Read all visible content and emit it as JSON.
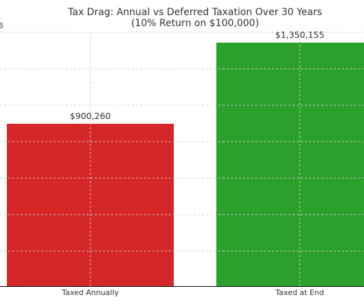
{
  "chart_data": {
    "type": "bar",
    "title": "Tax Drag: Annual vs Deferred Taxation Over 30 Years",
    "subtitle": "(10% Return on $100,000)",
    "categories": [
      "Taxed Annually",
      "Taxed at End"
    ],
    "values": [
      900260,
      1350155
    ],
    "data_labels": [
      "$900,260",
      "$1,350,155"
    ],
    "colors": [
      "#d62728",
      "#2ca02c"
    ],
    "partial_y_tick_label": "6",
    "grid": true,
    "xlabel": "",
    "ylabel": ""
  }
}
